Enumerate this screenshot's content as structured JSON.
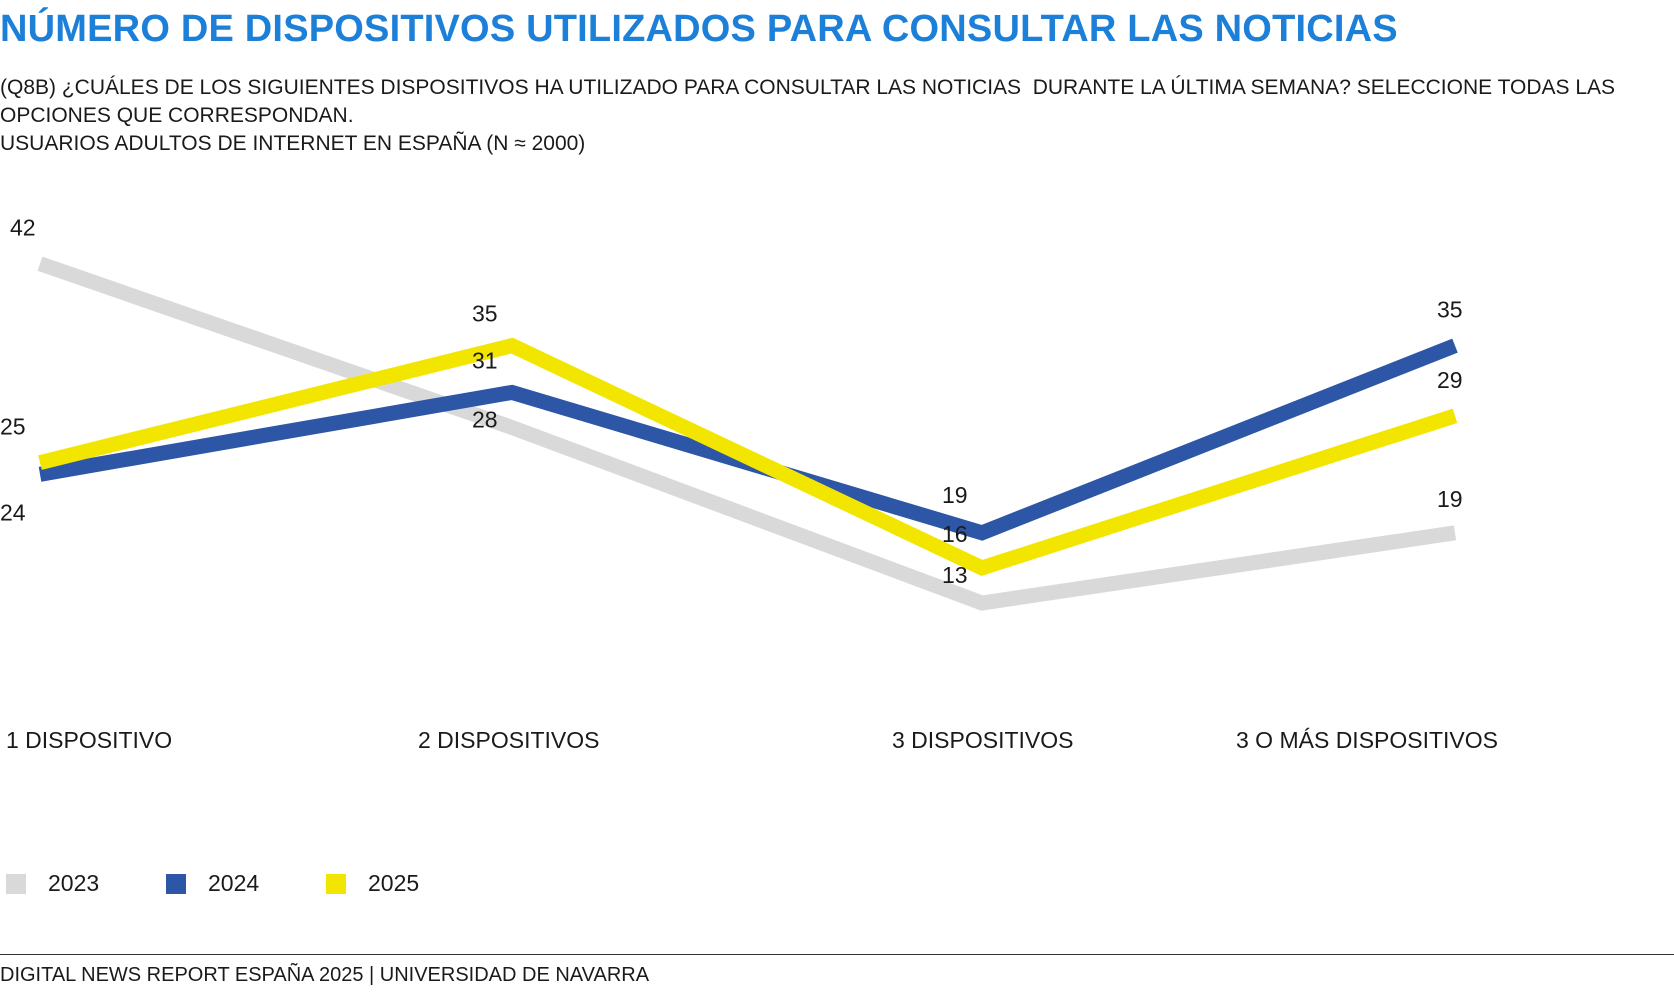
{
  "header": {
    "title": "NÚMERO DE DISPOSITIVOS UTILIZADOS PARA CONSULTAR LAS NOTICIAS",
    "subtitle_line1": "(Q8B) ¿CUÁLES DE LOS SIGUIENTES DISPOSITIVOS HA UTILIZADO PARA CONSULTAR LAS NOTICIAS  DURANTE LA ÚLTIMA SEMANA? SELECCIONE TODAS LAS OPCIONES QUE CORRESPONDAN.",
    "subtitle_line2": "USUARIOS ADULTOS DE INTERNET EN ESPAÑA (N ≈ 2000)"
  },
  "chart_data": {
    "type": "line",
    "categories": [
      "1 DISPOSITIVO",
      "2 DISPOSITIVOS",
      "3 DISPOSITIVOS",
      "3 O MÁS DISPOSITIVOS"
    ],
    "series": [
      {
        "name": "2023",
        "values": [
          42,
          28,
          13,
          19
        ],
        "color": "#d9d9d9"
      },
      {
        "name": "2024",
        "values": [
          24,
          31,
          19,
          35
        ],
        "color": "#2d56a6"
      },
      {
        "name": "2025",
        "values": [
          25,
          35,
          16,
          29
        ],
        "color": "#f2e600"
      }
    ],
    "grid": false,
    "legend_position": "bottom-left"
  },
  "footer": {
    "text": "DIGITAL NEWS REPORT ESPAÑA 2025 | UNIVERSIDAD DE NAVARRA"
  }
}
